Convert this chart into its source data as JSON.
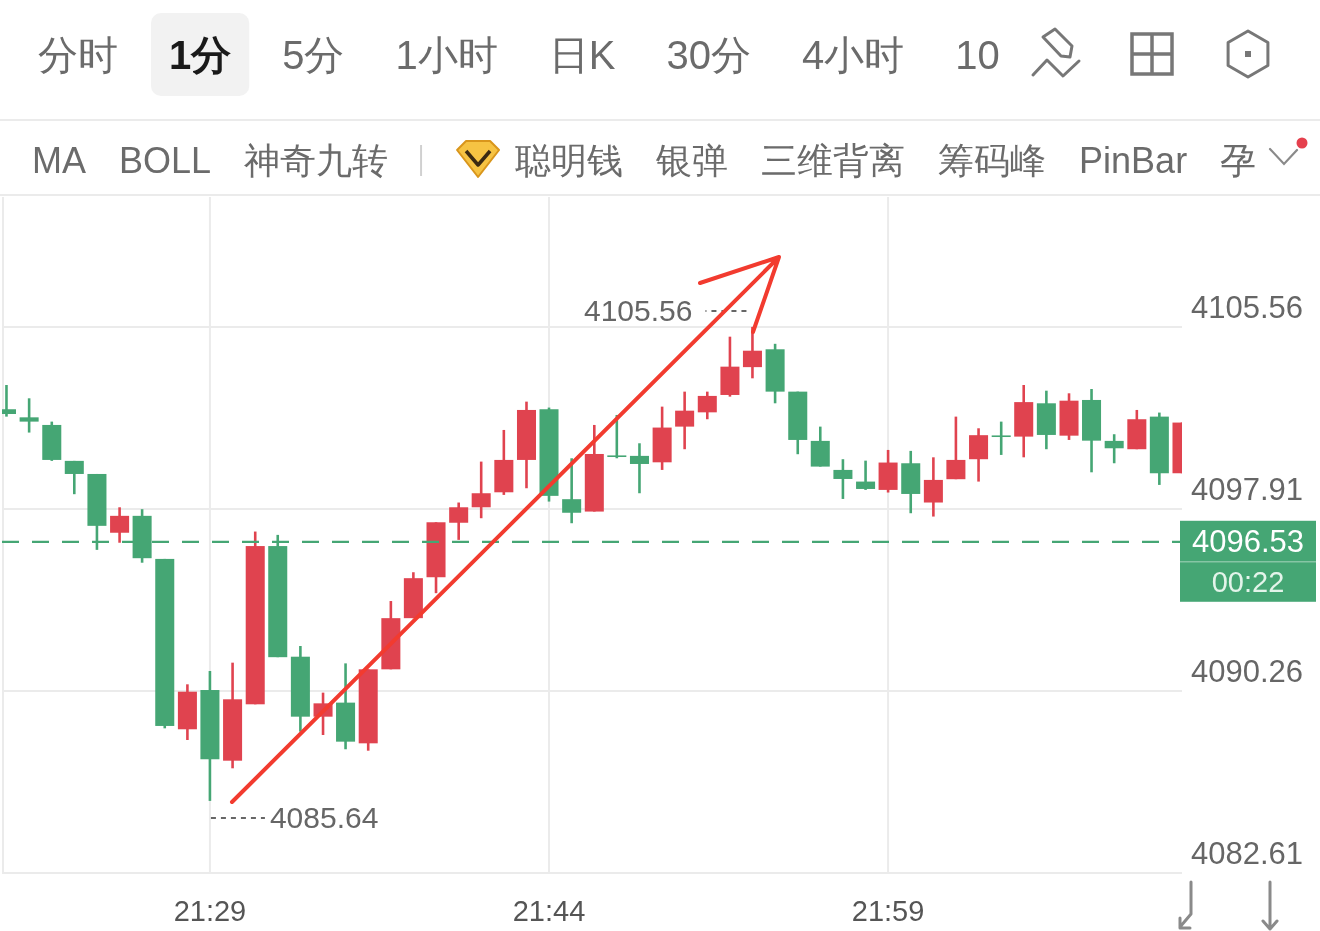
{
  "chart_data": {
    "type": "candlestick",
    "x": [
      21.3333,
      21.35,
      21.3667,
      21.3833,
      21.4,
      21.4167,
      21.4333,
      21.45,
      21.4667,
      21.4833,
      21.5,
      21.5167,
      21.5333,
      21.55,
      21.5667,
      21.5833,
      21.6,
      21.6167,
      21.6333,
      21.65,
      21.6667,
      21.6833,
      21.7,
      21.7167,
      21.7333,
      21.75,
      21.7667,
      21.7833,
      21.8,
      21.8167,
      21.8333,
      21.85,
      21.8667,
      21.8833,
      21.9,
      21.9167,
      21.9333,
      21.95,
      21.9667,
      21.9833,
      22.0,
      22.0167,
      22.0333,
      22.05,
      22.0667,
      22.0833,
      22.1,
      22.1167,
      22.1333,
      22.15,
      22.1667,
      22.1833,
      22.2
    ],
    "ohlc": [
      [
        4102.1,
        4103.12,
        4101.79,
        4101.9
      ],
      [
        4101.76,
        4102.56,
        4101.12,
        4101.58
      ],
      [
        4101.44,
        4101.58,
        4099.93,
        4099.97
      ],
      [
        4099.93,
        4099.93,
        4098.53,
        4099.38
      ],
      [
        4099.38,
        4099.38,
        4096.19,
        4097.2
      ],
      [
        4096.91,
        4097.98,
        4096.49,
        4097.62
      ],
      [
        4097.62,
        4097.9,
        4095.65,
        4095.84
      ],
      [
        4095.81,
        4095.81,
        4088.69,
        4088.79
      ],
      [
        4088.65,
        4090.54,
        4088.2,
        4090.23
      ],
      [
        4090.3,
        4091.1,
        4085.64,
        4087.39
      ],
      [
        4087.33,
        4091.45,
        4087.01,
        4089.91
      ],
      [
        4089.7,
        4096.96,
        4089.7,
        4096.35
      ],
      [
        4096.35,
        4096.82,
        4091.68,
        4091.68
      ],
      [
        4091.7,
        4092.15,
        4088.55,
        4089.18
      ],
      [
        4089.18,
        4090.19,
        4088.41,
        4089.74
      ],
      [
        4089.77,
        4091.42,
        4087.81,
        4088.13
      ],
      [
        4088.06,
        4091.17,
        4087.75,
        4091.17
      ],
      [
        4091.17,
        4094.04,
        4091.17,
        4093.32
      ],
      [
        4093.32,
        4095.25,
        4093.32,
        4095.0
      ],
      [
        4095.04,
        4097.35,
        4094.37,
        4097.35
      ],
      [
        4097.33,
        4098.18,
        4096.61,
        4097.98
      ],
      [
        4097.98,
        4099.9,
        4097.52,
        4098.57
      ],
      [
        4098.61,
        4101.23,
        4098.5,
        4099.97
      ],
      [
        4099.97,
        4102.42,
        4098.78,
        4102.07
      ],
      [
        4102.1,
        4102.17,
        4098.22,
        4098.46
      ],
      [
        4098.32,
        4100.04,
        4097.31,
        4097.75
      ],
      [
        4097.8,
        4101.44,
        4097.8,
        4100.22
      ],
      [
        4100.16,
        4101.86,
        4100.04,
        4100.12
      ],
      [
        4100.14,
        4100.67,
        4098.57,
        4099.8
      ],
      [
        4099.87,
        4102.21,
        4099.55,
        4101.33
      ],
      [
        4101.37,
        4102.84,
        4100.42,
        4102.04
      ],
      [
        4101.97,
        4102.84,
        4101.68,
        4102.66
      ],
      [
        4102.7,
        4105.15,
        4102.63,
        4103.89
      ],
      [
        4103.87,
        4105.56,
        4103.4,
        4104.56
      ],
      [
        4104.62,
        4104.85,
        4102.35,
        4102.84
      ],
      [
        4102.84,
        4102.84,
        4100.21,
        4100.81
      ],
      [
        4100.77,
        4101.37,
        4099.69,
        4099.69
      ],
      [
        4099.55,
        4100.0,
        4098.33,
        4099.17
      ],
      [
        4099.06,
        4099.94,
        4098.71,
        4098.75
      ],
      [
        4098.71,
        4100.39,
        4098.6,
        4099.86
      ],
      [
        4099.83,
        4100.35,
        4097.73,
        4098.54
      ],
      [
        4098.18,
        4100.08,
        4097.59,
        4099.13
      ],
      [
        4099.16,
        4101.79,
        4099.16,
        4099.97
      ],
      [
        4100.0,
        4101.3,
        4099.06,
        4101.01
      ],
      [
        4101.0,
        4101.58,
        4100.18,
        4100.98
      ],
      [
        4100.95,
        4103.12,
        4100.08,
        4102.4
      ],
      [
        4102.35,
        4102.88,
        4100.42,
        4101.02
      ],
      [
        4100.99,
        4102.77,
        4100.81,
        4102.46
      ],
      [
        4102.49,
        4102.95,
        4099.45,
        4100.78
      ],
      [
        4100.77,
        4101.05,
        4099.83,
        4100.46
      ],
      [
        4100.42,
        4102.07,
        4100.42,
        4101.68
      ],
      [
        4101.79,
        4101.96,
        4098.92,
        4099.41
      ],
      [
        4099.41,
        4101.54,
        4099.41,
        4101.54
      ]
    ],
    "colors": [
      "#45a674",
      "#45a674",
      "#45a674",
      "#45a674",
      "#45a674",
      "#e0434f",
      "#45a674",
      "#45a674",
      "#e0434f",
      "#45a674",
      "#e0434f",
      "#e0434f",
      "#45a674",
      "#45a674",
      "#e0434f",
      "#45a674",
      "#e0434f",
      "#e0434f",
      "#e0434f",
      "#e0434f",
      "#e0434f",
      "#e0434f",
      "#e0434f",
      "#e0434f",
      "#45a674",
      "#45a674",
      "#e0434f",
      "#45a674",
      "#45a674",
      "#e0434f",
      "#e0434f",
      "#e0434f",
      "#e0434f",
      "#e0434f",
      "#45a674",
      "#45a674",
      "#45a674",
      "#45a674",
      "#45a674",
      "#e0434f",
      "#45a674",
      "#e0434f",
      "#e0434f",
      "#e0434f",
      "#45a674",
      "#e0434f",
      "#45a674",
      "#e0434f",
      "#45a674",
      "#45a674",
      "#e0434f",
      "#45a674",
      "#e0434f"
    ],
    "xlim": [
      21.33,
      22.2
    ],
    "xticks": [
      {
        "value": 21.4833,
        "label": "21:29"
      },
      {
        "value": 21.7333,
        "label": "21:44"
      },
      {
        "value": 21.9833,
        "label": "21:59"
      }
    ],
    "ylim": [
      4082.61,
      4111.02
    ],
    "yticks": [
      4082.61,
      4090.26,
      4097.91,
      4105.56
    ],
    "grid": true,
    "ref_lines": [
      {
        "axis": "y",
        "value": 4096.53,
        "label": "4096.53",
        "color": "#45a674",
        "line_style": "dashed"
      }
    ],
    "annotations": [
      "分时",
      "1分",
      "5分",
      "1小时",
      "日K",
      "30分",
      "4小时",
      "10",
      "MA",
      "BOLL",
      "神奇九转",
      "聪明钱",
      "银弹",
      "三维背离",
      "筹码峰",
      "PinBar",
      "孕",
      "00:22",
      {
        "text": "4105.56",
        "x": 21.8833,
        "y": 4105.56
      },
      {
        "text": "4085.64",
        "x": 21.4833,
        "y": 4085.64
      }
    ]
  }
}
